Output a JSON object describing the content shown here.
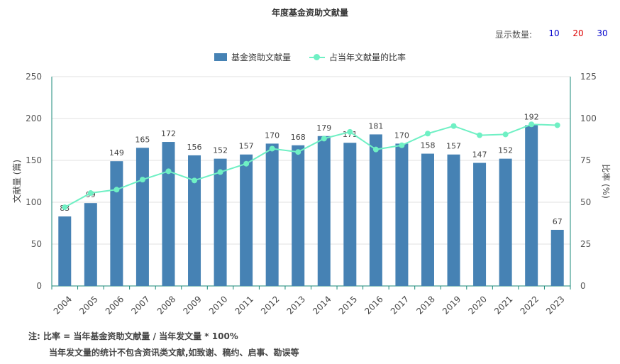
{
  "title": "年度基金资助文献量",
  "display_count": {
    "label": "显示数量:",
    "options": [
      {
        "text": "10",
        "color": "#0000cc"
      },
      {
        "text": "20",
        "color": "#dd0000"
      },
      {
        "text": "30",
        "color": "#0000cc"
      }
    ]
  },
  "notes": {
    "line1": "注:  比率 = 当年基金资助文献量 / 当年发文量 * 100%",
    "line2": "当年发文量的统计不包含资讯类文献,如致谢、稿约、启事、勘误等"
  },
  "colors": {
    "bar": "#4682b4",
    "line": "#6ff0c4",
    "axis_right": "#1a8a78",
    "grid": "#e0e0e0"
  },
  "chart_data": {
    "type": "bar",
    "title": "年度基金资助文献量",
    "categories": [
      "2004",
      "2005",
      "2006",
      "2007",
      "2008",
      "2009",
      "2010",
      "2011",
      "2012",
      "2013",
      "2014",
      "2015",
      "2016",
      "2017",
      "2018",
      "2019",
      "2020",
      "2021",
      "2022",
      "2023"
    ],
    "ylabel": "文献量 (篇)",
    "ylabel_right": "比率 (%)",
    "ylim": [
      0,
      250
    ],
    "ylim_right": [
      0,
      125
    ],
    "yticks": [
      0,
      50,
      100,
      150,
      200,
      250
    ],
    "yticks_right": [
      0,
      25,
      50,
      75,
      100,
      125
    ],
    "grid": true,
    "legend_position": "top-center",
    "series": [
      {
        "name": "基金资助文献量",
        "type": "bar",
        "axis": "left",
        "values": [
          83,
          99,
          149,
          165,
          172,
          156,
          152,
          157,
          170,
          168,
          179,
          171,
          181,
          170,
          158,
          157,
          147,
          152,
          192,
          67
        ],
        "labels_shown": true
      },
      {
        "name": "占当年文献量的比率",
        "type": "line",
        "axis": "right",
        "values": [
          47,
          55.5,
          57.5,
          63.5,
          68.5,
          63,
          68,
          73,
          82,
          80,
          88,
          92,
          81.5,
          84,
          91,
          95.5,
          90,
          90.5,
          96.5,
          96
        ]
      }
    ]
  }
}
